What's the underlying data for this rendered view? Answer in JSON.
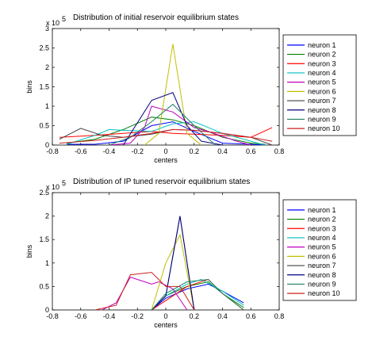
{
  "chart_data": [
    {
      "type": "line",
      "title": "Distribution of initial reservoir equilibrium states",
      "xlabel": "centers",
      "ylabel": "bins",
      "exponent_label": "x 10",
      "exponent_power": "5",
      "xlim": [
        -0.8,
        0.8
      ],
      "ylim": [
        0,
        3
      ],
      "xticks": [
        "-0.8",
        "-0.6",
        "-0.4",
        "-0.2",
        "0",
        "0.2",
        "0.4",
        "0.6",
        "0.8"
      ],
      "yticks": [
        "0",
        "0.5",
        "1",
        "1.5",
        "2",
        "2.5",
        "3"
      ],
      "legend_position": "right",
      "series": [
        {
          "name": "neuron 1",
          "color": "#0000ff",
          "x": [
            -0.7,
            -0.5,
            -0.3,
            -0.1,
            0.05,
            0.2,
            0.4,
            0.6,
            0.7
          ],
          "y": [
            0.02,
            0.02,
            0.1,
            0.5,
            0.6,
            0.35,
            0.05,
            0.02,
            0.0
          ]
        },
        {
          "name": "neuron 2",
          "color": "#008000",
          "x": [
            -0.7,
            -0.5,
            -0.3,
            -0.1,
            0.05,
            0.2,
            0.4,
            0.6,
            0.7
          ],
          "y": [
            0.05,
            0.15,
            0.4,
            0.72,
            0.65,
            0.5,
            0.2,
            0.05,
            0.02
          ]
        },
        {
          "name": "neuron 3",
          "color": "#ff0000",
          "x": [
            -0.75,
            -0.5,
            -0.3,
            -0.1,
            0.05,
            0.2,
            0.4,
            0.6,
            0.75
          ],
          "y": [
            0.2,
            0.25,
            0.3,
            0.35,
            0.3,
            0.28,
            0.25,
            0.2,
            0.45
          ]
        },
        {
          "name": "neuron 4",
          "color": "#00bfbf",
          "x": [
            -0.7,
            -0.5,
            -0.4,
            -0.3,
            -0.1,
            0.05,
            0.2,
            0.4,
            0.6,
            0.7
          ],
          "y": [
            0.02,
            0.25,
            0.4,
            0.38,
            0.35,
            0.55,
            0.6,
            0.3,
            0.1,
            0.0
          ]
        },
        {
          "name": "neuron 5",
          "color": "#bf00bf",
          "x": [
            -0.4,
            -0.25,
            -0.15,
            -0.1,
            0.05,
            0.2,
            0.3,
            0.5,
            0.6
          ],
          "y": [
            0.0,
            0.05,
            0.45,
            1.0,
            0.85,
            0.45,
            0.35,
            0.1,
            0.0
          ]
        },
        {
          "name": "neuron 6",
          "color": "#bfbf00",
          "x": [
            -0.15,
            -0.05,
            0.05,
            0.15,
            0.25
          ],
          "y": [
            0.0,
            0.3,
            2.6,
            0.3,
            0.0
          ]
        },
        {
          "name": "neuron 7",
          "color": "#404040",
          "x": [
            -0.75,
            -0.6,
            -0.45,
            -0.3,
            -0.1,
            0.05,
            0.2,
            0.4,
            0.6,
            0.75
          ],
          "y": [
            0.15,
            0.43,
            0.25,
            0.2,
            0.28,
            0.4,
            0.38,
            0.3,
            0.2,
            0.0
          ]
        },
        {
          "name": "neuron 8",
          "color": "#000080",
          "x": [
            -0.3,
            -0.1,
            0.05,
            0.15,
            0.25,
            0.4
          ],
          "y": [
            0.0,
            1.15,
            1.35,
            0.5,
            0.1,
            0.0
          ]
        },
        {
          "name": "neuron 9",
          "color": "#208060",
          "x": [
            -0.4,
            -0.25,
            -0.1,
            0.05,
            0.2,
            0.35
          ],
          "y": [
            0.0,
            0.2,
            0.6,
            1.05,
            0.5,
            0.0
          ]
        },
        {
          "name": "neuron 10",
          "color": "#cc2020",
          "x": [
            -0.75,
            -0.5,
            -0.3,
            -0.1,
            0.05,
            0.2,
            0.4,
            0.6,
            0.75
          ],
          "y": [
            0.05,
            0.12,
            0.2,
            0.3,
            0.4,
            0.38,
            0.3,
            0.2,
            0.1
          ]
        }
      ]
    },
    {
      "type": "line",
      "title": "Distribution of IP tuned reservoir equilibrium states",
      "xlabel": "centers",
      "ylabel": "bins",
      "exponent_label": "x 10",
      "exponent_power": "5",
      "xlim": [
        -0.8,
        0.8
      ],
      "ylim": [
        0,
        2.5
      ],
      "xticks": [
        "-0.8",
        "-0.6",
        "-0.4",
        "-0.2",
        "0",
        "0.2",
        "0.4",
        "0.6",
        "0.8"
      ],
      "yticks": [
        "0",
        "0.5",
        "1",
        "1.5",
        "2",
        "2.5"
      ],
      "legend_position": "right",
      "series": [
        {
          "name": "neuron 1",
          "color": "#0000ff",
          "x": [
            -0.1,
            0.0,
            0.15,
            0.3,
            0.4,
            0.55
          ],
          "y": [
            0.0,
            0.25,
            0.45,
            0.55,
            0.4,
            0.15
          ]
        },
        {
          "name": "neuron 2",
          "color": "#008000",
          "x": [
            -0.1,
            0.0,
            0.15,
            0.3,
            0.4,
            0.55
          ],
          "y": [
            0.0,
            0.3,
            0.5,
            0.6,
            0.35,
            0.05
          ]
        },
        {
          "name": "neuron 3",
          "color": "#ff0000",
          "x": [
            -0.1,
            0.0,
            0.15,
            0.3,
            0.4,
            0.55
          ],
          "y": [
            0.0,
            0.2,
            0.5,
            0.65,
            0.35,
            0.0
          ]
        },
        {
          "name": "neuron 4",
          "color": "#00bfbf",
          "x": [
            -0.1,
            0.0,
            0.15,
            0.25,
            0.4,
            0.55
          ],
          "y": [
            0.0,
            0.3,
            0.55,
            0.65,
            0.4,
            0.1
          ]
        },
        {
          "name": "neuron 5",
          "color": "#bf00bf",
          "x": [
            -0.45,
            -0.35,
            -0.25,
            -0.1,
            -0.05,
            0.05,
            0.15
          ],
          "y": [
            0.0,
            0.15,
            0.7,
            0.55,
            0.6,
            0.45,
            0.0
          ]
        },
        {
          "name": "neuron 6",
          "color": "#bfbf00",
          "x": [
            -0.1,
            0.0,
            0.1,
            0.2
          ],
          "y": [
            0.0,
            1.0,
            1.6,
            0.0
          ]
        },
        {
          "name": "neuron 7",
          "color": "#404040",
          "x": [
            -0.1,
            0.0,
            0.1,
            0.2
          ],
          "y": [
            0.0,
            0.3,
            2.0,
            0.0
          ]
        },
        {
          "name": "neuron 8",
          "color": "#000080",
          "x": [
            -0.1,
            0.0,
            0.1,
            0.2
          ],
          "y": [
            0.0,
            0.3,
            2.0,
            0.0
          ]
        },
        {
          "name": "neuron 9",
          "color": "#208060",
          "x": [
            -0.1,
            0.0,
            0.15,
            0.3,
            0.4,
            0.55
          ],
          "y": [
            0.0,
            0.35,
            0.6,
            0.65,
            0.35,
            0.0
          ]
        },
        {
          "name": "neuron 10",
          "color": "#cc2020",
          "x": [
            -0.5,
            -0.35,
            -0.25,
            -0.1,
            0.0,
            0.1,
            0.2
          ],
          "y": [
            0.0,
            0.1,
            0.75,
            0.8,
            0.5,
            0.5,
            0.0
          ]
        }
      ]
    }
  ]
}
